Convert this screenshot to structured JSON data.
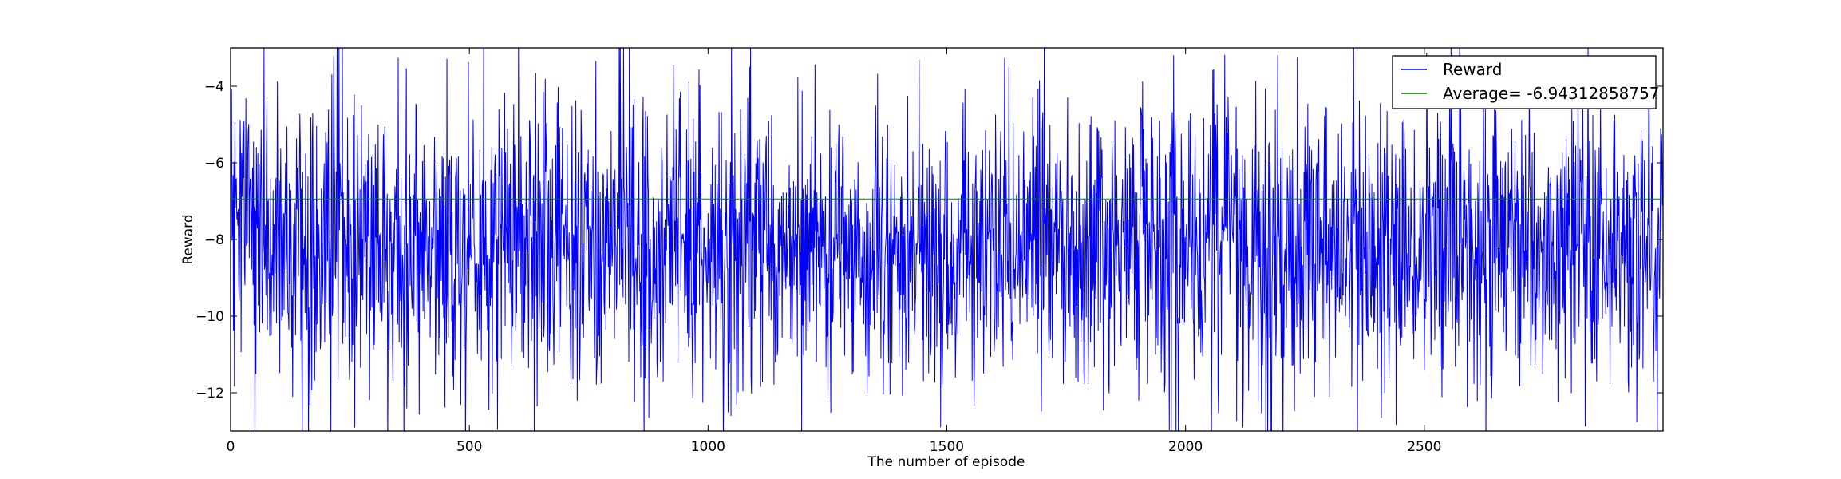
{
  "chart_data": {
    "type": "line",
    "xlabel": "The number of episode",
    "ylabel": "Reward",
    "xlim": [
      0,
      3000
    ],
    "ylim": [
      -13,
      -3
    ],
    "xticks": [
      "0",
      "500",
      "1000",
      "1500",
      "2000",
      "2500"
    ],
    "yticks": [
      "−12",
      "−10",
      "−8",
      "−6",
      "−4"
    ],
    "grid": false,
    "legend_position": "top-right",
    "series": [
      {
        "name": "Reward",
        "color": "#0000ff",
        "n_points": 3000,
        "approx_mean": -6.94,
        "approx_range": [
          -13.5,
          -2.9
        ],
        "key_points": [
          [
            0,
            -8.0
          ],
          [
            70,
            -2.9
          ],
          [
            130,
            -12.1
          ],
          [
            150,
            -13.4
          ],
          [
            260,
            -12.9
          ],
          [
            530,
            -2.9
          ],
          [
            1060,
            -12.3
          ],
          [
            1770,
            -11.6
          ],
          [
            1980,
            -13.4
          ],
          [
            2120,
            -12.9
          ],
          [
            2180,
            -13.3
          ],
          [
            2360,
            -13.2
          ],
          [
            2980,
            -11.7
          ]
        ]
      },
      {
        "name": "Average= -6.94312858757",
        "color": "#008000",
        "constant": -6.94312858757
      }
    ]
  }
}
